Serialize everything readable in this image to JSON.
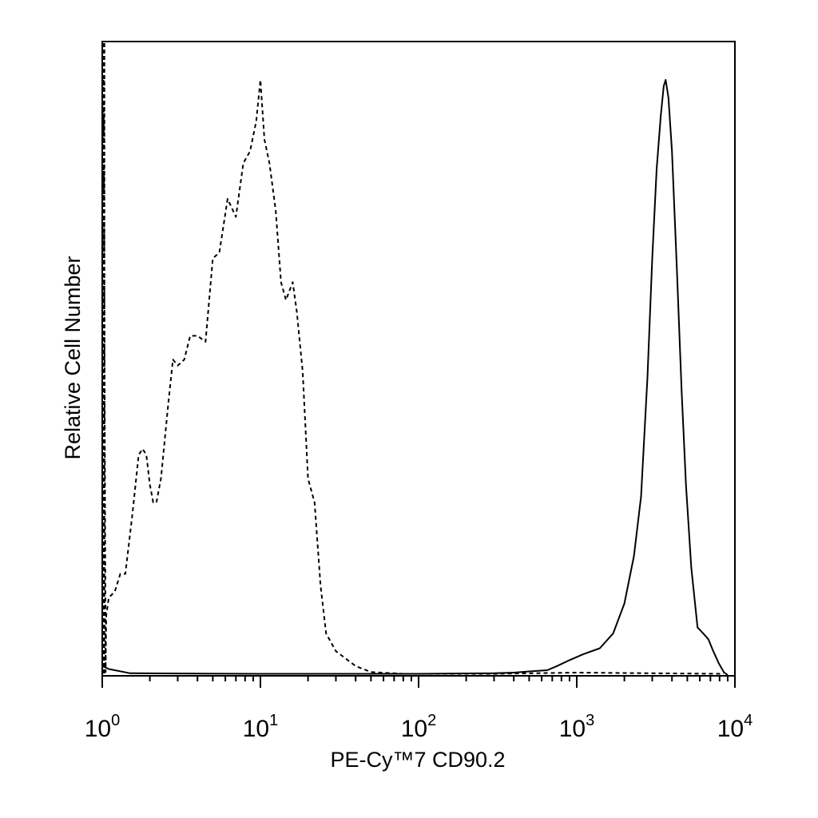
{
  "chart_data": {
    "type": "line",
    "title": "",
    "xlabel": "PE-Cy™7 CD90.2",
    "ylabel": "Relative Cell Number",
    "xscale": "log",
    "xlim": [
      1,
      10000
    ],
    "ylim": [
      0,
      100
    ],
    "grid": false,
    "legend": "none",
    "x_ticks": [
      {
        "value": 1,
        "base": "10",
        "exp": "0"
      },
      {
        "value": 10,
        "base": "10",
        "exp": "1"
      },
      {
        "value": 100,
        "base": "10",
        "exp": "2"
      },
      {
        "value": 1000,
        "base": "10",
        "exp": "3"
      },
      {
        "value": 10000,
        "base": "10",
        "exp": "4"
      }
    ],
    "series": [
      {
        "style": "dashed",
        "points": [
          [
            1.02,
            100
          ],
          [
            1.05,
            0.5
          ],
          [
            1.06,
            10
          ],
          [
            1.1,
            13
          ],
          [
            1.2,
            14
          ],
          [
            1.3,
            17
          ],
          [
            1.4,
            17
          ],
          [
            1.55,
            27
          ],
          [
            1.7,
            37
          ],
          [
            1.8,
            38
          ],
          [
            1.9,
            37
          ],
          [
            2.0,
            32
          ],
          [
            2.1,
            29
          ],
          [
            2.2,
            29
          ],
          [
            2.35,
            33
          ],
          [
            2.6,
            45
          ],
          [
            2.8,
            53
          ],
          [
            3.0,
            52
          ],
          [
            3.3,
            53
          ],
          [
            3.6,
            57
          ],
          [
            4.0,
            57
          ],
          [
            4.5,
            56
          ],
          [
            5.0,
            70
          ],
          [
            5.5,
            71
          ],
          [
            6.2,
            80
          ],
          [
            7.0,
            77
          ],
          [
            7.8,
            86
          ],
          [
            8.6,
            88
          ],
          [
            9.4,
            93
          ],
          [
            10.0,
            100
          ],
          [
            10.6,
            90
          ],
          [
            11.4,
            86
          ],
          [
            12.5,
            78
          ],
          [
            13.5,
            66
          ],
          [
            14.5,
            63
          ],
          [
            16.0,
            66
          ],
          [
            17.0,
            61
          ],
          [
            18.5,
            51
          ],
          [
            20.0,
            33
          ],
          [
            22.0,
            29
          ],
          [
            24.0,
            15
          ],
          [
            26.0,
            7
          ],
          [
            30.0,
            4
          ],
          [
            40.0,
            1.5
          ],
          [
            50.0,
            0.5
          ],
          [
            80.0,
            0.2
          ],
          [
            300,
            0.2
          ],
          [
            1000,
            0.4
          ],
          [
            3000,
            0.3
          ],
          [
            8500,
            0.2
          ]
        ]
      },
      {
        "style": "solid",
        "points": [
          [
            1.0,
            1.5
          ],
          [
            1.1,
            1.0
          ],
          [
            1.5,
            0.3
          ],
          [
            10,
            0.2
          ],
          [
            100,
            0.2
          ],
          [
            300,
            0.3
          ],
          [
            400,
            0.4
          ],
          [
            500,
            0.6
          ],
          [
            650,
            0.8
          ],
          [
            750,
            1.5
          ],
          [
            900,
            2.5
          ],
          [
            1100,
            3.5
          ],
          [
            1400,
            4.5
          ],
          [
            1700,
            7
          ],
          [
            2000,
            12
          ],
          [
            2300,
            20
          ],
          [
            2550,
            30
          ],
          [
            2800,
            50
          ],
          [
            3000,
            70
          ],
          [
            3200,
            85
          ],
          [
            3400,
            94
          ],
          [
            3550,
            99
          ],
          [
            3650,
            100
          ],
          [
            3800,
            97
          ],
          [
            4000,
            88
          ],
          [
            4300,
            68
          ],
          [
            4600,
            48
          ],
          [
            4900,
            32
          ],
          [
            5300,
            18
          ],
          [
            5800,
            8
          ],
          [
            6300,
            7
          ],
          [
            6800,
            6
          ],
          [
            7300,
            4
          ],
          [
            7900,
            2
          ],
          [
            8500,
            0.5
          ],
          [
            9000,
            0
          ]
        ]
      }
    ]
  }
}
